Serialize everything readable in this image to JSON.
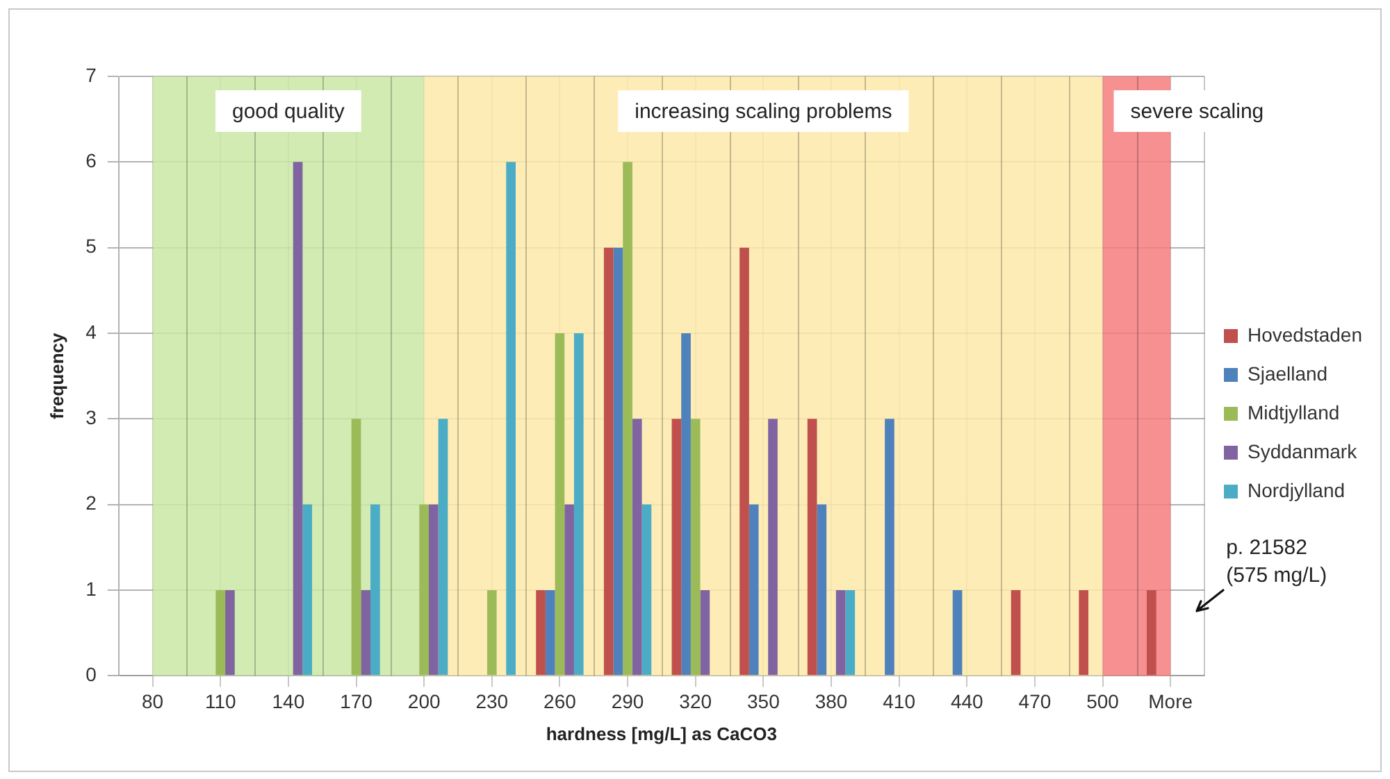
{
  "chart_data": {
    "type": "bar",
    "xlabel": "hardness [mg/L] as CaCO3",
    "ylabel": "frequency",
    "categories": [
      "80",
      "110",
      "140",
      "170",
      "200",
      "230",
      "260",
      "290",
      "320",
      "350",
      "380",
      "410",
      "440",
      "470",
      "500",
      "More"
    ],
    "series": [
      {
        "name": "Hovedstaden",
        "color": "#c0504d",
        "values": [
          0,
          0,
          0,
          0,
          0,
          0,
          1,
          5,
          3,
          5,
          3,
          0,
          0,
          1,
          1,
          1
        ]
      },
      {
        "name": "Sjaelland",
        "color": "#4f81bd",
        "values": [
          0,
          0,
          0,
          0,
          0,
          0,
          1,
          5,
          4,
          2,
          2,
          3,
          1,
          0,
          0,
          0
        ]
      },
      {
        "name": "Midtjylland",
        "color": "#9bbb59",
        "values": [
          0,
          1,
          0,
          3,
          2,
          1,
          4,
          6,
          3,
          0,
          0,
          0,
          0,
          0,
          0,
          0
        ]
      },
      {
        "name": "Syddanmark",
        "color": "#8064a2",
        "values": [
          0,
          1,
          6,
          1,
          2,
          0,
          2,
          3,
          1,
          3,
          1,
          0,
          0,
          0,
          0,
          0
        ]
      },
      {
        "name": "Nordjylland",
        "color": "#4bacc6",
        "values": [
          0,
          0,
          2,
          2,
          3,
          6,
          4,
          2,
          0,
          0,
          1,
          0,
          0,
          0,
          0,
          0
        ]
      }
    ],
    "ylim": [
      0,
      7
    ],
    "yticks": [
      0,
      1,
      2,
      3,
      4,
      5,
      6,
      7
    ],
    "grid": true,
    "legend": "right",
    "bands": [
      {
        "axis": "x",
        "from": "80",
        "to": "200",
        "label": "good quality",
        "color": "#c9e8a4"
      },
      {
        "axis": "x",
        "from": "200",
        "to": "500",
        "label": "increasing scaling problems",
        "color": "#fde9a9"
      },
      {
        "axis": "x",
        "from": "500",
        "to": "More",
        "label": "severe scaling",
        "color": "#f47c7e"
      }
    ],
    "annotations": [
      {
        "text": "p. 21582\n(575 mg/L)",
        "x": "More",
        "y": 1
      }
    ]
  }
}
